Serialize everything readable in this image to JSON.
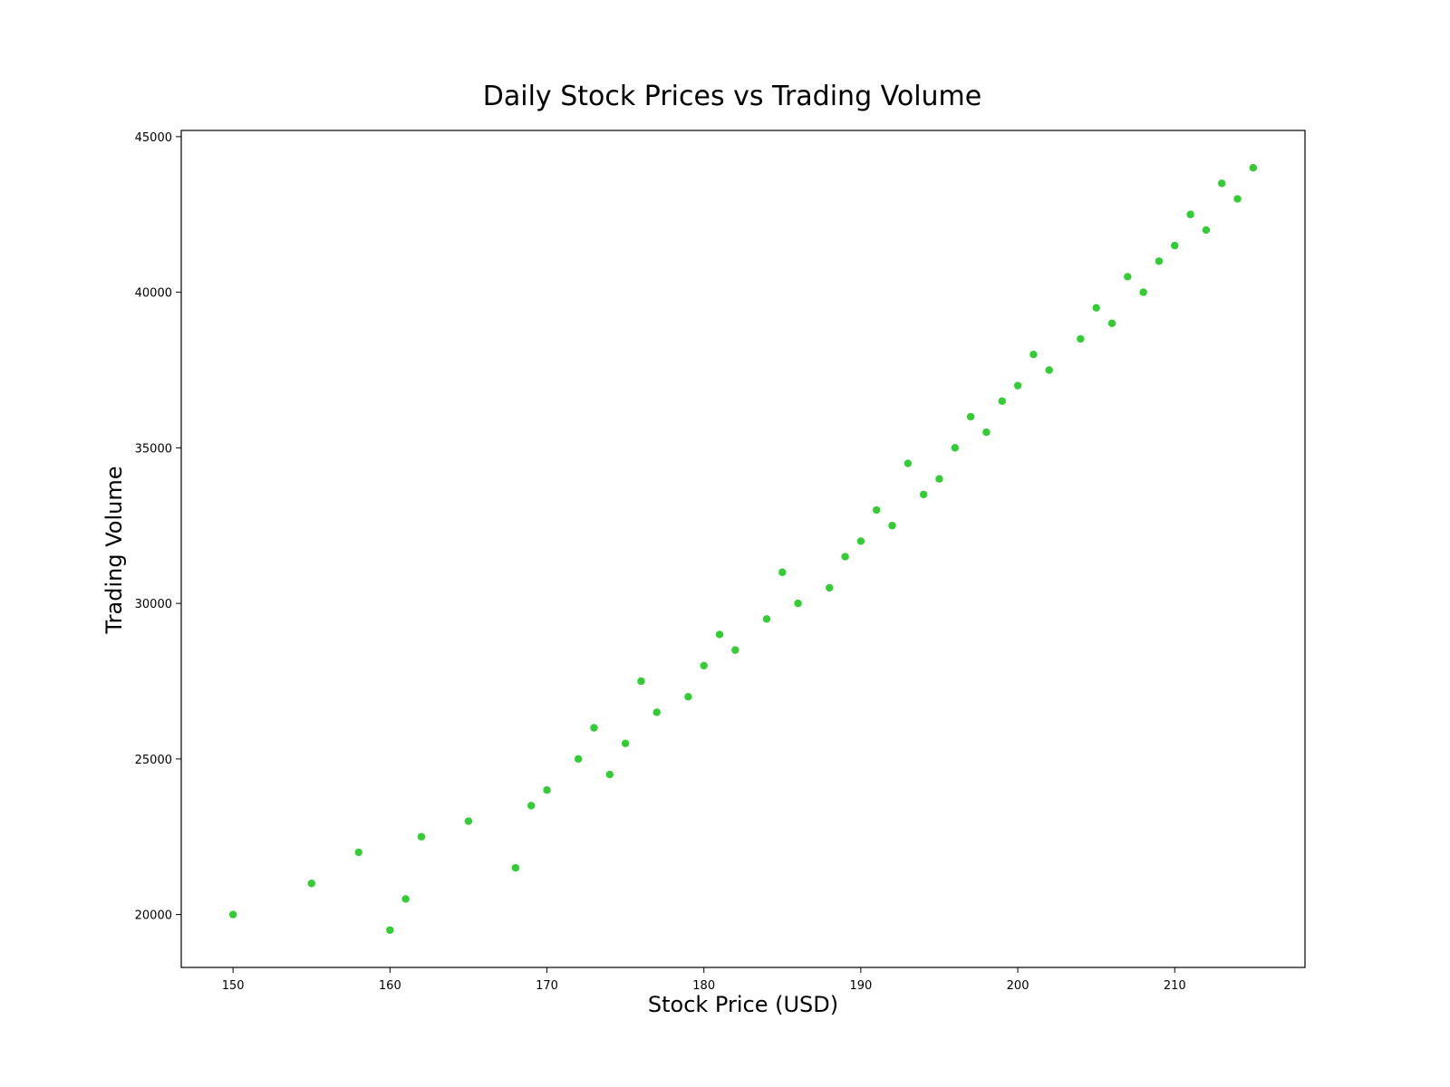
{
  "chart_data": {
    "type": "scatter",
    "title": "Daily Stock Prices vs Trading Volume",
    "xlabel": "Stock Price (USD)",
    "ylabel": "Trading Volume",
    "xlim": [
      146.7,
      218.3
    ],
    "ylim": [
      18300,
      45200
    ],
    "xticks": [
      150,
      160,
      170,
      180,
      190,
      200,
      210
    ],
    "yticks": [
      20000,
      25000,
      30000,
      35000,
      40000,
      45000
    ],
    "grid": false,
    "legend": "none",
    "marker_color": "#32cd32",
    "series": [
      {
        "x": [
          150,
          155,
          158,
          160,
          161,
          162,
          165,
          168,
          169,
          170,
          172,
          173,
          174,
          175,
          176,
          177,
          179,
          180,
          181,
          182,
          184,
          185,
          186,
          188,
          189,
          190,
          191,
          192,
          193,
          194,
          195,
          196,
          197,
          198,
          199,
          200,
          201,
          202,
          204,
          205,
          206,
          207,
          208,
          209,
          210,
          211,
          212,
          213,
          214,
          215
        ],
        "y": [
          20000,
          21000,
          22000,
          19500,
          20500,
          22500,
          23000,
          21500,
          23500,
          24000,
          25000,
          26000,
          24500,
          25500,
          27500,
          26500,
          27000,
          28000,
          29000,
          28500,
          29500,
          31000,
          30000,
          30500,
          31500,
          32000,
          33000,
          32500,
          34500,
          33500,
          34000,
          35000,
          36000,
          35500,
          36500,
          37000,
          38000,
          37500,
          38500,
          39500,
          39000,
          40500,
          40000,
          41000,
          41500,
          42500,
          42000,
          43500,
          43000,
          44000
        ]
      }
    ]
  }
}
